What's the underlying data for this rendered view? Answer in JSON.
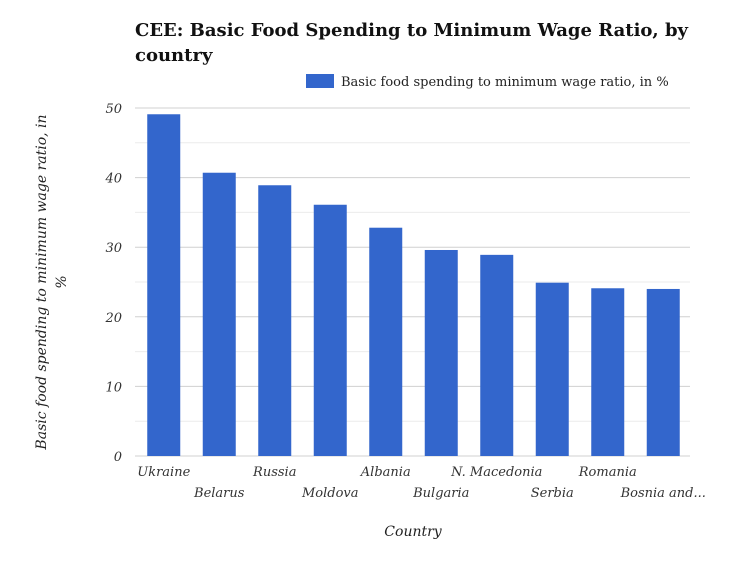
{
  "chart_data": {
    "type": "bar",
    "title_line1": "CEE: Basic Food Spending to Minimum Wage Ratio, by",
    "title_line2": "country",
    "xlabel": "Country",
    "ylabel_line1": "Basic food spending to minimum wage ratio, in",
    "ylabel_line2": "%",
    "categories": [
      "Ukraine",
      "Belarus",
      "Russia",
      "Moldova",
      "Albania",
      "Bulgaria",
      "N. Macedonia",
      "Serbia",
      "Romania",
      "Bosnia and..."
    ],
    "series": [
      {
        "name": "Basic food spending to minimum wage ratio, in %",
        "values": [
          49.1,
          40.7,
          38.9,
          36.1,
          32.8,
          29.6,
          28.9,
          24.9,
          24.1,
          24.0
        ],
        "color": "#3366cc"
      }
    ],
    "ylim": [
      0,
      50
    ],
    "yticks": [
      0,
      10,
      20,
      30,
      40,
      50
    ],
    "grid": true,
    "legend": "top-right"
  }
}
